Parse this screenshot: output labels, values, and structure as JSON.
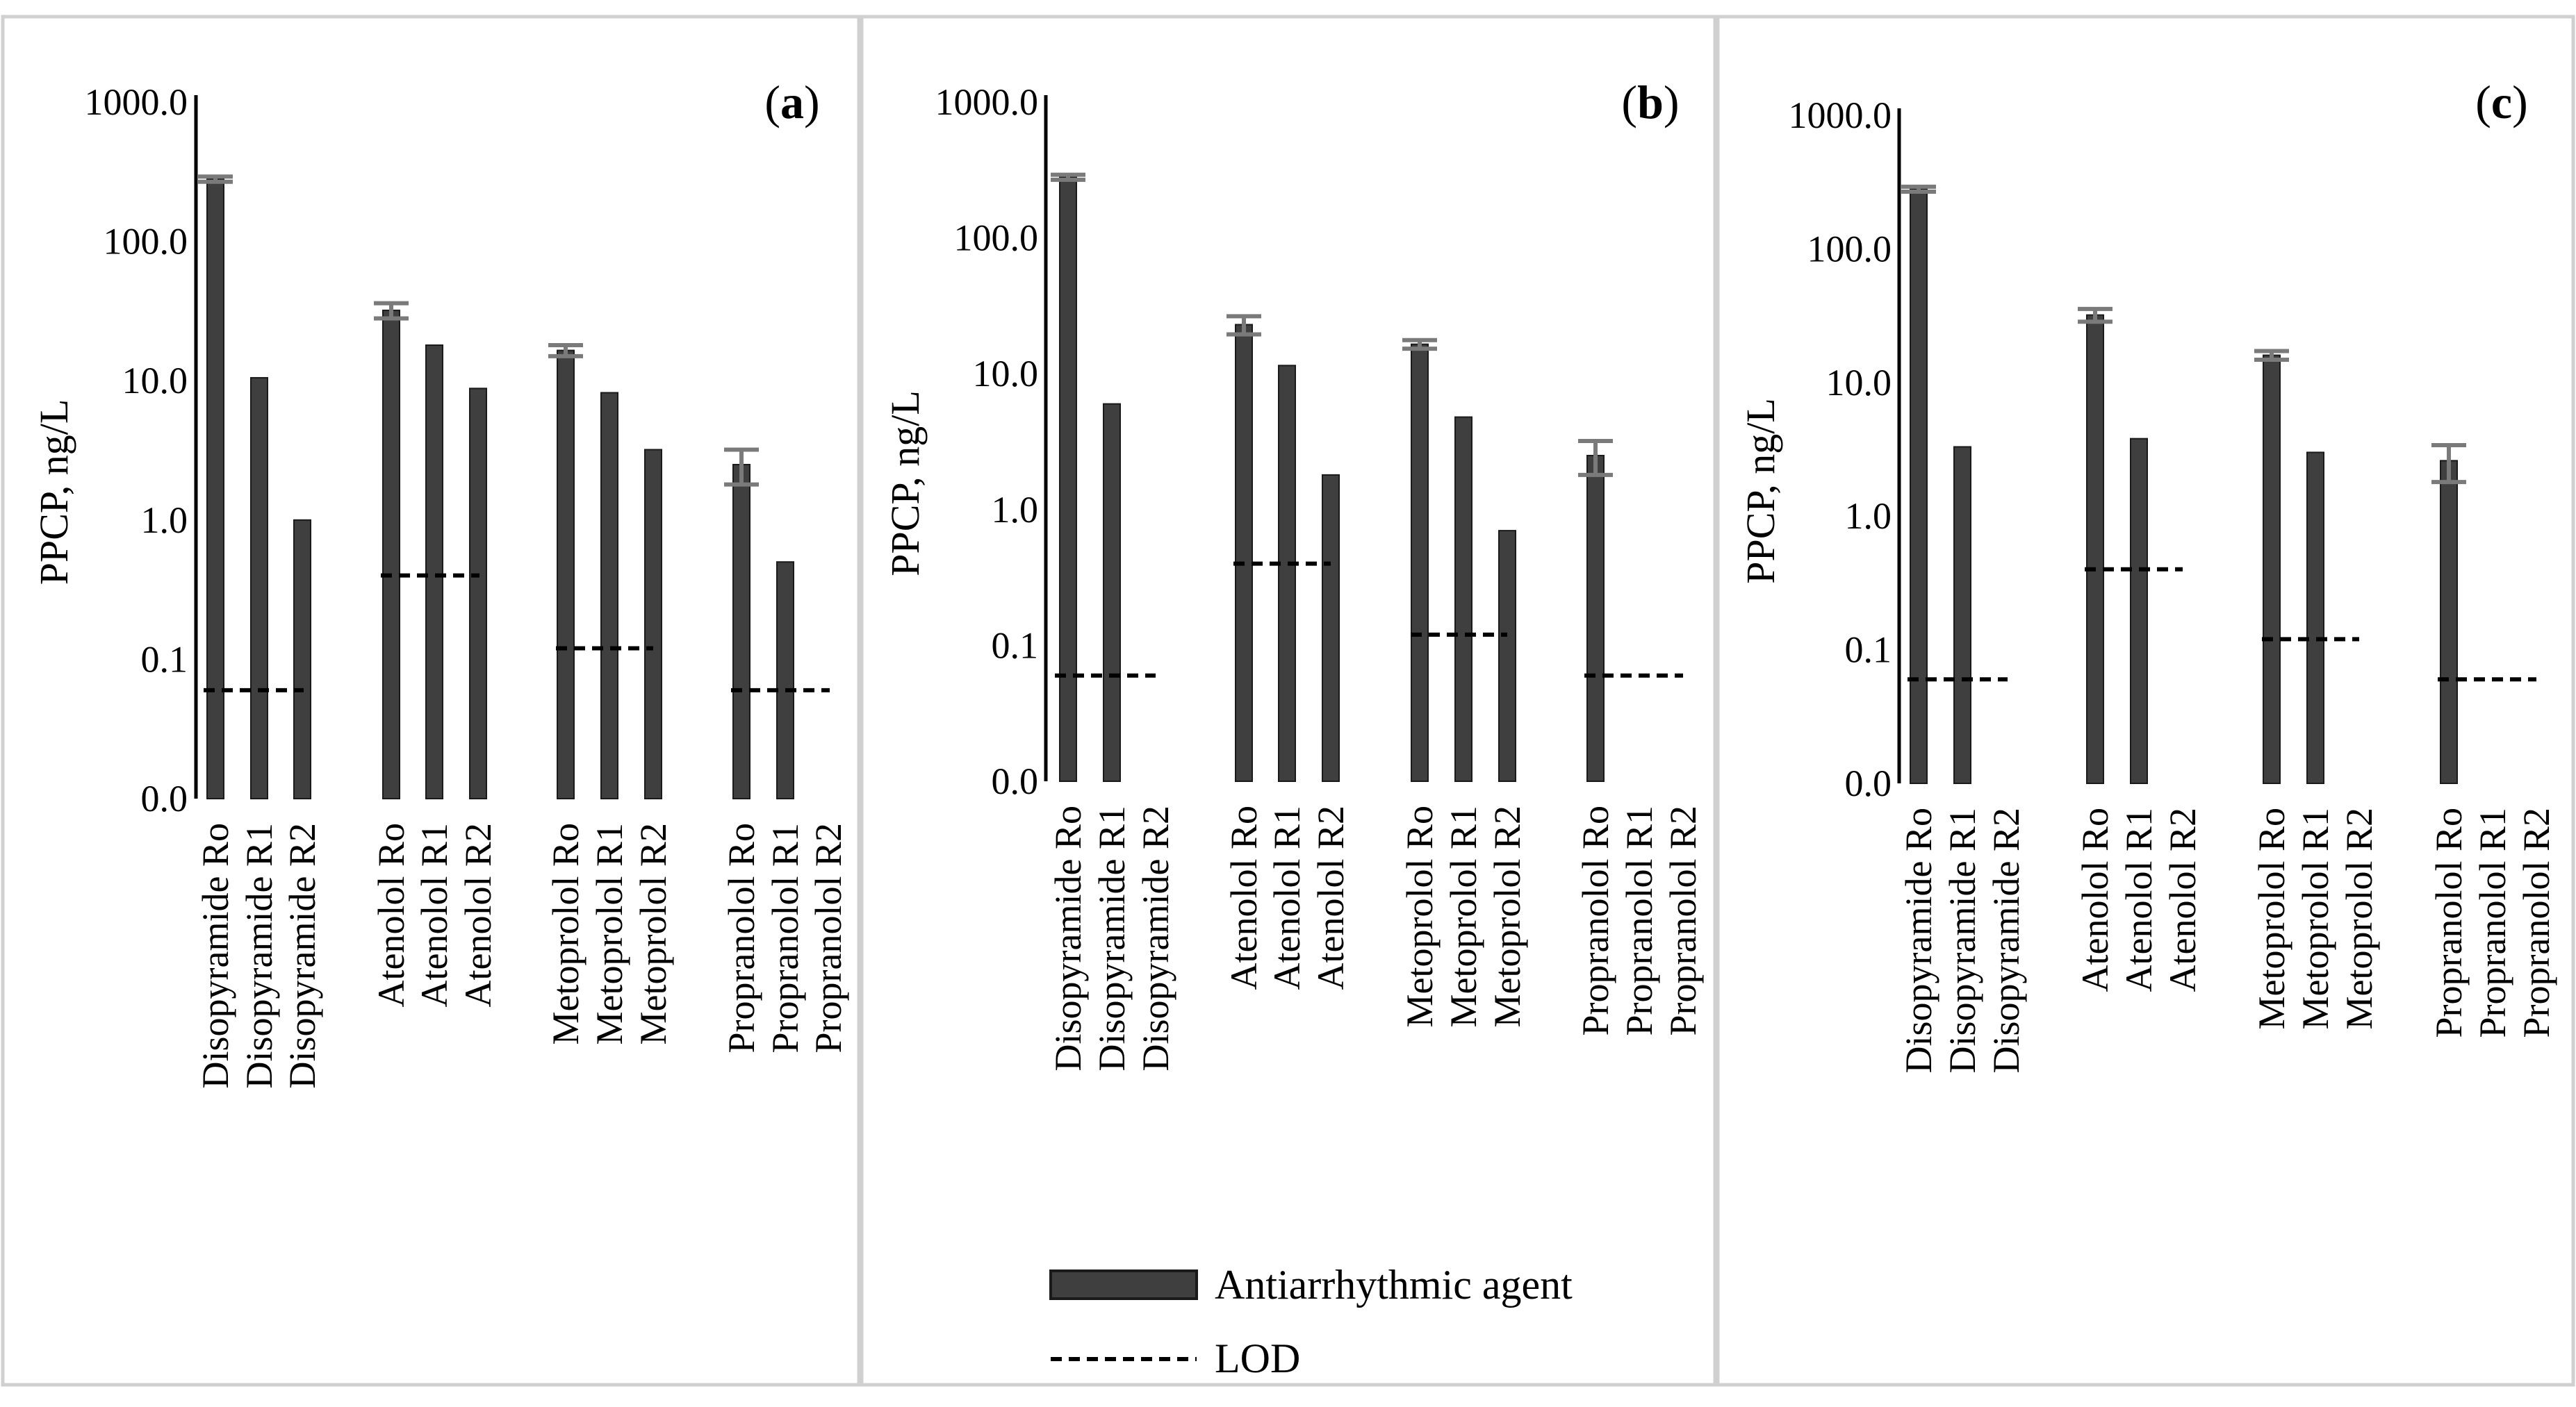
{
  "y_axis_title": "PPCP, ng/L",
  "y_tick_labels": [
    "0.0",
    "0.1",
    "1.0",
    "10.0",
    "100.0",
    "1000.0"
  ],
  "legend": {
    "bar_label": "Antiarrhythmic agent",
    "lod_label": "LOD"
  },
  "colors": {
    "bar": "#3f3f3f",
    "error_bar": "#7a7a7a",
    "lod": "#000000",
    "panel_border": "#d0d0d0"
  },
  "chart_data": [
    {
      "type": "bar",
      "panel": "a",
      "scale": "log",
      "ylabel": "PPCP, ng/L",
      "ylim": [
        0.01,
        1000
      ],
      "categories": [
        "Disopyramide Ro",
        "Disopyramide R1",
        "Disopyramide R2",
        "Atenolol Ro",
        "Atenolol R1",
        "Atenolol R2",
        "Metoprolol Ro",
        "Metoprolol R1",
        "Metoprolol R2",
        "Propranolol Ro",
        "Propranolol R1",
        "Propranolol R2"
      ],
      "series": [
        {
          "name": "Antiarrhythmic agent",
          "values": [
            280,
            10.5,
            1.0,
            32,
            18,
            8.8,
            16.5,
            8.2,
            3.2,
            2.5,
            0.5,
            null
          ],
          "errors": [
            12,
            null,
            null,
            4,
            null,
            null,
            1.5,
            null,
            null,
            0.7,
            null,
            null
          ]
        },
        {
          "name": "LOD",
          "values": [
            0.06,
            0.06,
            0.06,
            0.4,
            0.4,
            0.4,
            0.12,
            0.12,
            0.12,
            0.06,
            0.06,
            0.06
          ]
        }
      ]
    },
    {
      "type": "bar",
      "panel": "b",
      "scale": "log",
      "ylabel": "PPCP, ng/L",
      "ylim": [
        0.01,
        1000
      ],
      "categories": [
        "Disopyramide Ro",
        "Disopyramide R1",
        "Disopyramide R2",
        "Atenolol Ro",
        "Atenolol R1",
        "Atenolol R2",
        "Metoprolol Ro",
        "Metoprolol R1",
        "Metoprolol R2",
        "Propranolol Ro",
        "Propranolol R1",
        "Propranolol R2"
      ],
      "series": [
        {
          "name": "Antiarrhythmic agent",
          "values": [
            280,
            6.0,
            null,
            23,
            11.5,
            1.8,
            16.5,
            4.8,
            0.7,
            2.5,
            null,
            null
          ],
          "errors": [
            12,
            null,
            null,
            3.5,
            null,
            null,
            1.2,
            null,
            null,
            0.7,
            null,
            null
          ]
        },
        {
          "name": "LOD",
          "values": [
            0.06,
            0.06,
            0.06,
            0.4,
            0.4,
            0.4,
            0.12,
            0.12,
            0.12,
            0.06,
            0.06,
            0.06
          ]
        }
      ]
    },
    {
      "type": "bar",
      "panel": "c",
      "scale": "log",
      "ylabel": "PPCP, ng/L",
      "ylim": [
        0.01,
        1000
      ],
      "categories": [
        "Disopyramide Ro",
        "Disopyramide R1",
        "Disopyramide R2",
        "Atenolol Ro",
        "Atenolol R1",
        "Atenolol R2",
        "Metoprolol Ro",
        "Metoprolol R1",
        "Metoprolol R2",
        "Propranolol Ro",
        "Propranolol R1",
        "Propranolol R2"
      ],
      "series": [
        {
          "name": "Antiarrhythmic agent",
          "values": [
            280,
            3.3,
            null,
            32,
            3.8,
            null,
            16,
            3.0,
            null,
            2.6,
            null,
            null
          ],
          "errors": [
            12,
            null,
            null,
            3.5,
            null,
            null,
            1.2,
            null,
            null,
            0.8,
            null,
            null
          ]
        },
        {
          "name": "LOD",
          "values": [
            0.06,
            0.06,
            0.06,
            0.4,
            0.4,
            0.4,
            0.12,
            0.12,
            0.12,
            0.06,
            0.06,
            0.06
          ]
        }
      ]
    }
  ]
}
